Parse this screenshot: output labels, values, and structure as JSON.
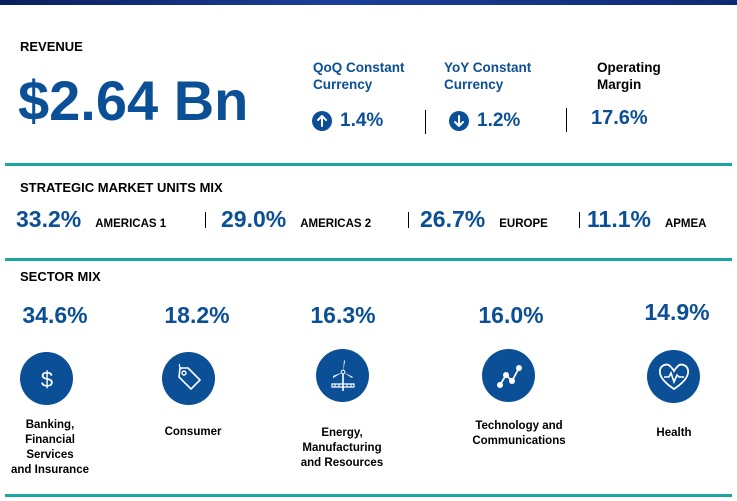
{
  "revenue": {
    "title": "REVENUE",
    "amount": "$2.64 Bn",
    "qoq": {
      "label_line1": "QoQ Constant",
      "label_line2": "Currency",
      "value": "1.4%",
      "direction": "up"
    },
    "yoy": {
      "label_line1": "YoY Constant",
      "label_line2": "Currency",
      "value": "1.2%",
      "direction": "down"
    },
    "margin": {
      "label_line1": "Operating",
      "label_line2": "Margin",
      "value": "17.6%"
    }
  },
  "smu": {
    "title": "STRATEGIC MARKET UNITS MIX",
    "items": [
      {
        "pct": "33.2%",
        "name": "AMERICAS 1"
      },
      {
        "pct": "29.0%",
        "name": "AMERICAS 2"
      },
      {
        "pct": "26.7%",
        "name": "EUROPE"
      },
      {
        "pct": "11.1%",
        "name": "APMEA"
      }
    ]
  },
  "sector": {
    "title": "SECTOR MIX",
    "items": [
      {
        "pct": "34.6%",
        "icon": "dollar-icon",
        "label_lines": [
          "Banking,",
          "Financial",
          "Services",
          "and Insurance"
        ]
      },
      {
        "pct": "18.2%",
        "icon": "price-tag-icon",
        "label_lines": [
          "Consumer"
        ]
      },
      {
        "pct": "16.3%",
        "icon": "wind-turbine-icon",
        "label_lines": [
          "Energy,",
          "Manufacturing",
          "and Resources"
        ]
      },
      {
        "pct": "16.0%",
        "icon": "network-graph-icon",
        "label_lines": [
          "Technology and",
          "Communications"
        ]
      },
      {
        "pct": "14.9%",
        "icon": "heartbeat-icon",
        "label_lines": [
          "Health"
        ]
      }
    ]
  },
  "colors": {
    "accent": "#0b4f96",
    "divider": "#19a6a0",
    "topbar": "#0e2a73"
  }
}
